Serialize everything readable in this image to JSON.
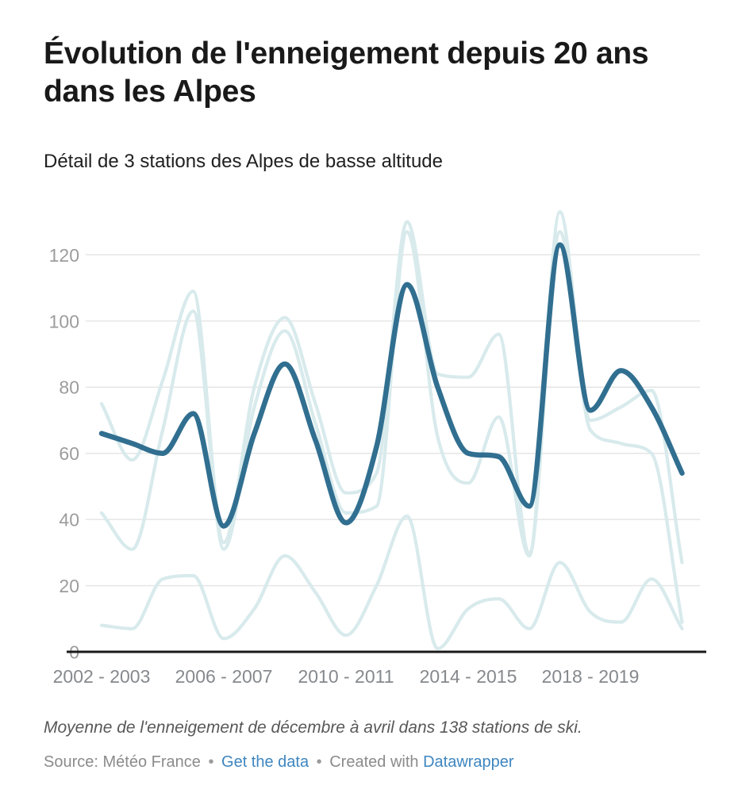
{
  "header": {
    "title": "Évolution de l'enneigement depuis 20 ans dans les Alpes",
    "subtitle": "Détail de 3 stations des Alpes de basse altitude"
  },
  "chart_data": {
    "type": "line",
    "title": "Évolution de l'enneigement depuis 20 ans dans les Alpes",
    "xlabel": "",
    "ylabel": "",
    "ylim": [
      0,
      135
    ],
    "y_ticks": [
      0,
      20,
      40,
      60,
      80,
      100,
      120
    ],
    "grid": true,
    "legend": "none",
    "categories": [
      "2002-2003",
      "2003-2004",
      "2004-2005",
      "2005-2006",
      "2006-2007",
      "2007-2008",
      "2008-2009",
      "2009-2010",
      "2010-2011",
      "2011-2012",
      "2012-2013",
      "2013-2014",
      "2014-2015",
      "2015-2016",
      "2016-2017",
      "2017-2018",
      "2018-2019",
      "2019-2020",
      "2020-2021",
      "2021-2022"
    ],
    "x_ticks": [
      {
        "index": 0,
        "label": "2002 - 2003"
      },
      {
        "index": 4,
        "label": "2006 - 2007"
      },
      {
        "index": 8,
        "label": "2010 - 2011"
      },
      {
        "index": 12,
        "label": "2014 - 2015"
      },
      {
        "index": 16,
        "label": "2018 - 2019"
      }
    ],
    "series": [
      {
        "name": "station-basse-altitude-1",
        "role": "muted",
        "color": "#d8eaec",
        "values": [
          75,
          58,
          82,
          109,
          33,
          80,
          101,
          75,
          48,
          54,
          130,
          84,
          83,
          96,
          30,
          133,
          70,
          74,
          79,
          27
        ]
      },
      {
        "name": "station-basse-altitude-2",
        "role": "muted",
        "color": "#d8eaec",
        "values": [
          42,
          31,
          67,
          103,
          31,
          74,
          97,
          69,
          42,
          44,
          127,
          65,
          51,
          71,
          29,
          127,
          67,
          63,
          60,
          9
        ]
      },
      {
        "name": "station-basse-altitude-3",
        "role": "muted",
        "color": "#d8eaec",
        "values": [
          8,
          7,
          22,
          23,
          4,
          13,
          29,
          18,
          5,
          20,
          41,
          1,
          13,
          16,
          7,
          27,
          12,
          9,
          22,
          7
        ]
      },
      {
        "name": "serie-principale-foncee",
        "role": "highlight",
        "color": "#316f90",
        "values": [
          66,
          63,
          60,
          72,
          38,
          66,
          87,
          64,
          39,
          62,
          111,
          80,
          60,
          59,
          44,
          123,
          73,
          85,
          74,
          54
        ]
      }
    ]
  },
  "colors": {
    "highlight_line": "#316f90",
    "muted_line": "#d8eaec",
    "link": "#3e86c0"
  },
  "footer": {
    "note": "Moyenne de l'enneigement de décembre à avril dans 138 stations de ski.",
    "source_text": "Source: Météo France",
    "separator": "•",
    "get_data_label": "Get the data",
    "created_with": "Created with",
    "datawrapper_label": "Datawrapper"
  }
}
